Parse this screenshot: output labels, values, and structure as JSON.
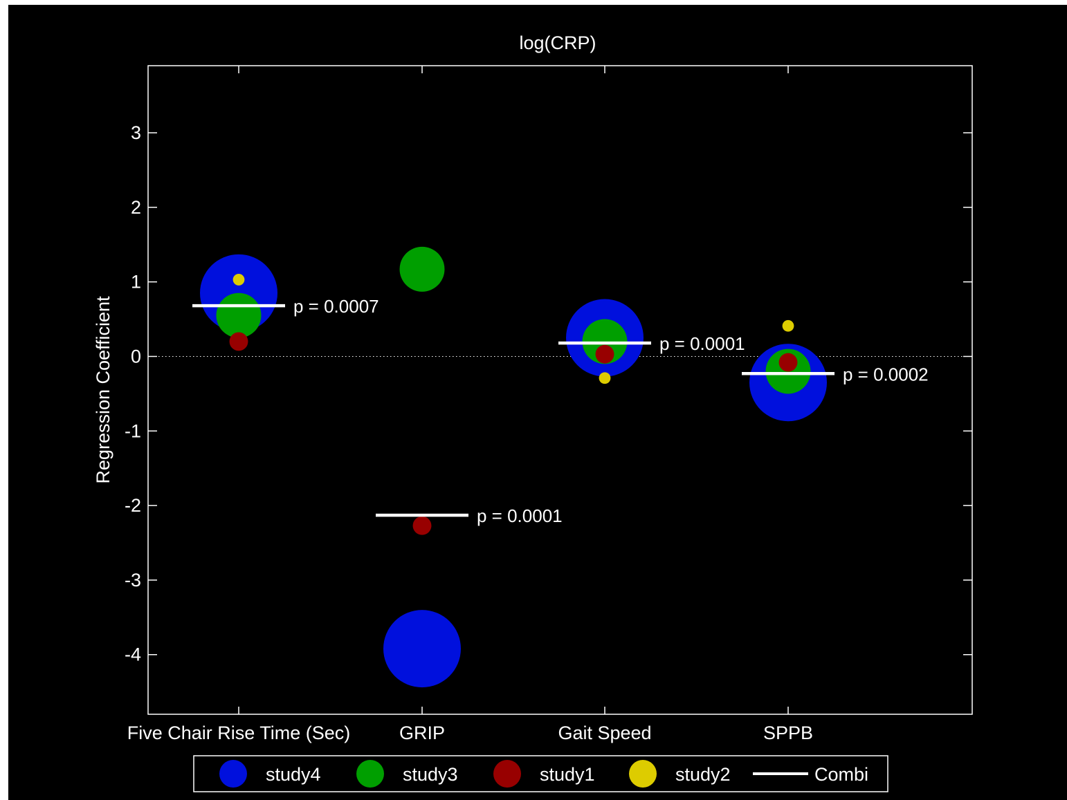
{
  "chart_data": {
    "type": "scatter",
    "title": "log(CRP)",
    "xlabel": "",
    "ylabel": "Regression Coefficient",
    "categories": [
      "Five Chair Rise Time (Sec)",
      "GRIP",
      "Gait Speed",
      "SPPB"
    ],
    "ylim": [
      -4.8,
      3.9
    ],
    "yticks": [
      -4,
      -3,
      -2,
      -1,
      0,
      1,
      2,
      3
    ],
    "zero_line": "dotted",
    "grid": false,
    "legend_position": "bottom",
    "background": "#000000",
    "series": [
      {
        "name": "study4",
        "color": "#0010dd",
        "values": [
          0.85,
          -3.92,
          0.25,
          -0.35
        ],
        "relative_size": 1.0
      },
      {
        "name": "study3",
        "color": "#009f00",
        "values": [
          0.55,
          1.17,
          0.2,
          -0.2
        ],
        "relative_size": 0.58
      },
      {
        "name": "study1",
        "color": "#980000",
        "values": [
          0.2,
          -2.27,
          0.03,
          -0.08
        ],
        "relative_size": 0.24
      },
      {
        "name": "study2",
        "color": "#ddcc00",
        "values": [
          1.03,
          null,
          -0.29,
          0.41
        ],
        "relative_size": 0.15
      }
    ],
    "combined": {
      "name": "Combi",
      "color": "#ffffff",
      "values": [
        0.68,
        -2.13,
        0.18,
        -0.23
      ],
      "labels": [
        "p = 0.0007",
        "p = 0.0001",
        "p = 0.0001",
        "p = 0.0002"
      ]
    }
  }
}
